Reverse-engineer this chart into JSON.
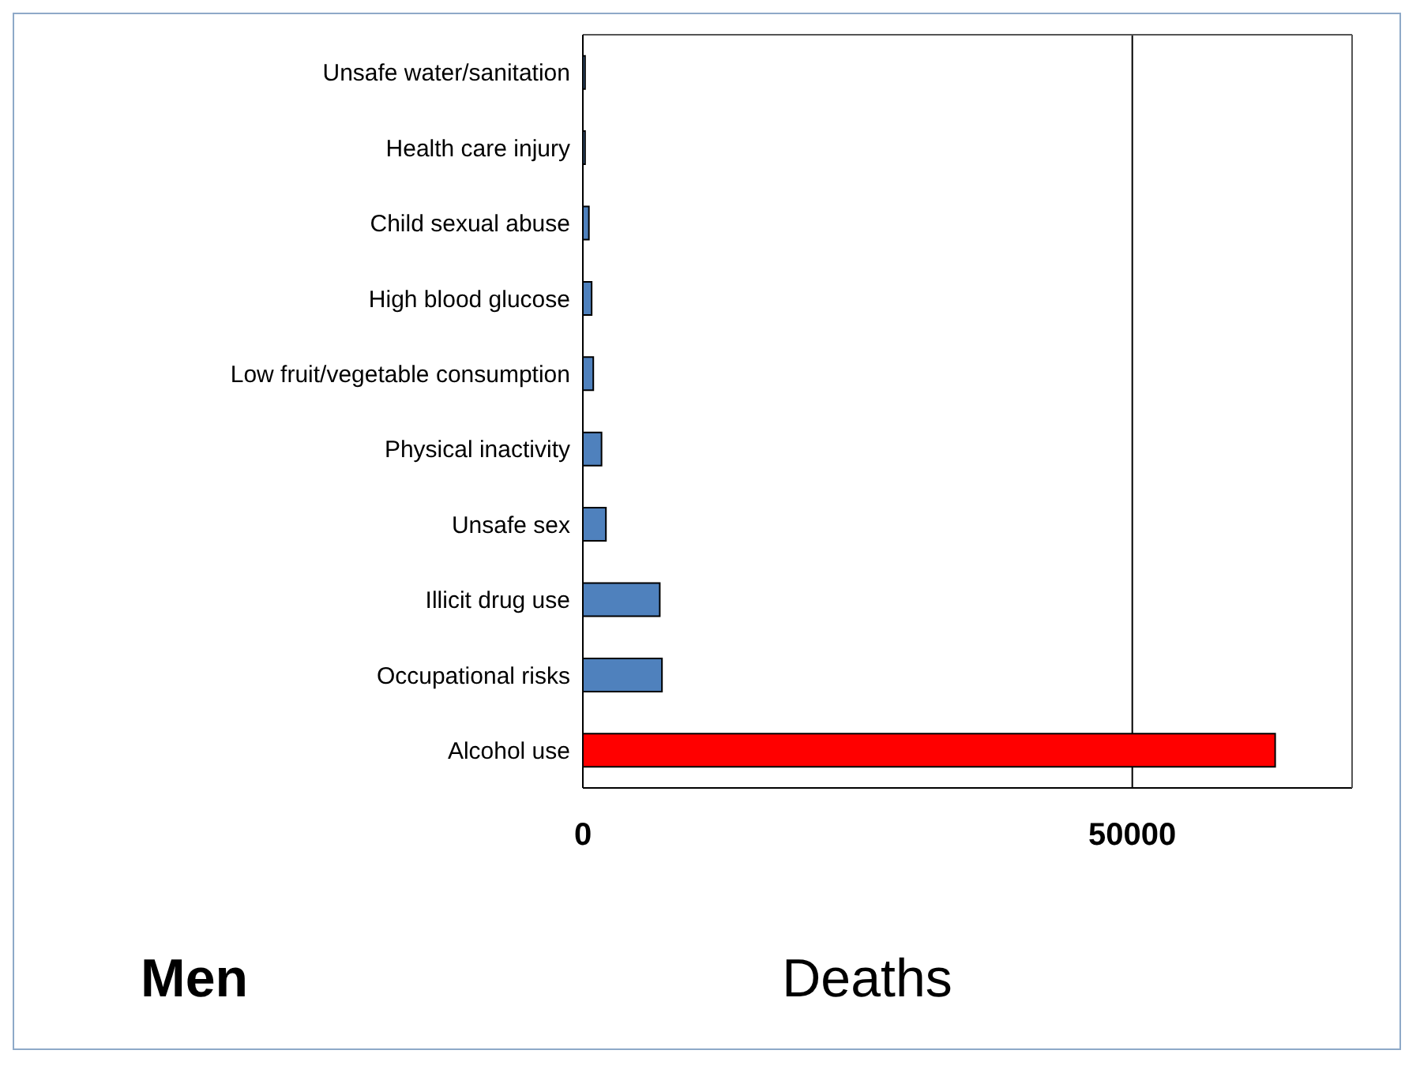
{
  "chart_data": {
    "type": "bar",
    "orientation": "horizontal",
    "xlabel": "Deaths",
    "annotations": [
      "Men"
    ],
    "categories": [
      "Unsafe water/sanitation",
      "Health care injury",
      "Child sexual abuse",
      "High blood glucose",
      "Low fruit/vegetable  consumption",
      "Physical inactivity",
      "Unsafe sex",
      "Illicit drug use",
      "Occupational risks",
      "Alcohol use"
    ],
    "values": [
      200,
      200,
      550,
      800,
      950,
      1700,
      2100,
      7000,
      7200,
      63000
    ],
    "colors": [
      "#4f81bd",
      "#4f81bd",
      "#4f81bd",
      "#4f81bd",
      "#4f81bd",
      "#4f81bd",
      "#4f81bd",
      "#4f81bd",
      "#4f81bd",
      "#ff0000"
    ],
    "xlim": [
      0,
      70000
    ],
    "xticks": [
      0,
      50000
    ],
    "grid": "x",
    "legend": false
  }
}
